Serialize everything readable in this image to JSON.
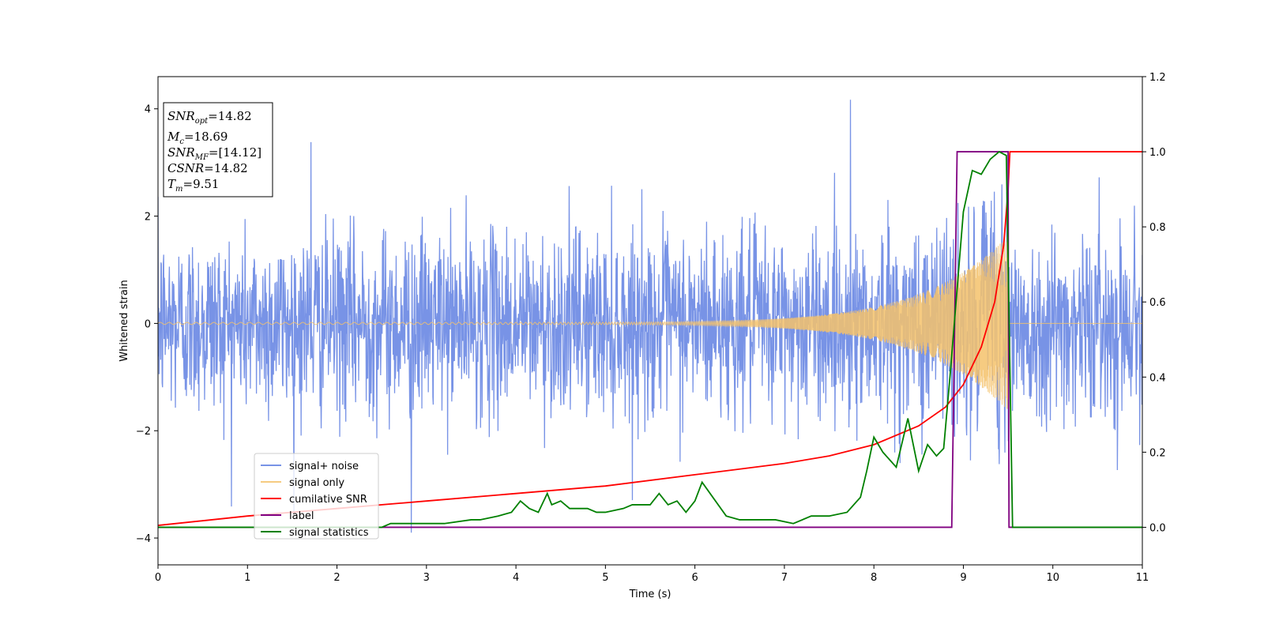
{
  "chart_data": {
    "type": "line",
    "xlabel": "Time (s)",
    "ylabel": "Whitened strain",
    "xlim": [
      0,
      11
    ],
    "ylim": [
      -4.5,
      4.6
    ],
    "y2lim": [
      -0.1,
      1.2
    ],
    "xticks": [
      "0",
      "1",
      "2",
      "3",
      "4",
      "5",
      "6",
      "7",
      "8",
      "9",
      "10",
      "11"
    ],
    "yticks": [
      "-4",
      "-2",
      "0",
      "2",
      "4"
    ],
    "y2ticks": [
      "0.0",
      "0.2",
      "0.4",
      "0.6",
      "0.8",
      "1.0",
      "1.2"
    ],
    "legend_position": "lower-left",
    "grid": false,
    "annotation": {
      "lines": [
        {
          "main": "SNR",
          "sub": "opt",
          "value": "=14.82"
        },
        {
          "main": "M",
          "sub": "c",
          "value": "=18.69"
        },
        {
          "main": "SNR",
          "sub": "MF",
          "value": "=[14.12]"
        },
        {
          "main": "CSNR",
          "sub": "",
          "value": "=14.82"
        },
        {
          "main": "T",
          "sub": "m",
          "value": "=9.51"
        }
      ]
    },
    "series": [
      {
        "name": "signal+ noise",
        "axis": "left",
        "color": "#7893e6",
        "kind": "noise",
        "noise_std": 0.85,
        "peak_values": [
          [
            7.74,
            4.17
          ],
          [
            2.83,
            -3.9
          ],
          [
            1.71,
            3.38
          ]
        ]
      },
      {
        "name": "signal only",
        "axis": "left",
        "color": "#f5c26b",
        "kind": "chirp",
        "amplitude_start": 0.02,
        "amplitude_end": 1.65,
        "end_time": 9.51,
        "start_frequency": 10,
        "end_frequency": 60
      },
      {
        "name": "cumilative SNR",
        "axis": "right",
        "color": "#ff0000",
        "kind": "line",
        "x": [
          0,
          1,
          2,
          3,
          4,
          5,
          6,
          7,
          7.5,
          8,
          8.5,
          8.8,
          9,
          9.2,
          9.35,
          9.45,
          9.5,
          9.52,
          11
        ],
        "y": [
          0.005,
          0.03,
          0.05,
          0.07,
          0.09,
          0.11,
          0.14,
          0.17,
          0.19,
          0.22,
          0.27,
          0.32,
          0.38,
          0.48,
          0.6,
          0.75,
          0.9,
          1.0,
          1.0
        ]
      },
      {
        "name": "label",
        "axis": "right",
        "color": "#800080",
        "kind": "line",
        "x": [
          0,
          8.87,
          8.93,
          9.5,
          9.51,
          11
        ],
        "y": [
          0.0,
          0.0,
          1.0,
          1.0,
          0.0,
          0.0
        ]
      },
      {
        "name": "signal statistics",
        "axis": "right",
        "color": "#008000",
        "kind": "line",
        "x": [
          0,
          2.5,
          2.6,
          2.9,
          3.2,
          3.5,
          3.6,
          3.8,
          3.95,
          4.05,
          4.15,
          4.25,
          4.35,
          4.4,
          4.5,
          4.6,
          4.8,
          4.9,
          5.0,
          5.2,
          5.3,
          5.5,
          5.6,
          5.7,
          5.8,
          5.9,
          6.0,
          6.08,
          6.2,
          6.35,
          6.5,
          6.7,
          6.9,
          7.1,
          7.3,
          7.5,
          7.7,
          7.85,
          7.92,
          8.0,
          8.1,
          8.25,
          8.38,
          8.5,
          8.6,
          8.7,
          8.78,
          8.85,
          9.0,
          9.1,
          9.2,
          9.3,
          9.4,
          9.48,
          9.55,
          11
        ],
        "y": [
          0.0,
          0.0,
          0.01,
          0.01,
          0.01,
          0.02,
          0.02,
          0.03,
          0.04,
          0.07,
          0.05,
          0.04,
          0.09,
          0.06,
          0.07,
          0.05,
          0.05,
          0.04,
          0.04,
          0.05,
          0.06,
          0.06,
          0.09,
          0.06,
          0.07,
          0.04,
          0.07,
          0.12,
          0.08,
          0.03,
          0.02,
          0.02,
          0.02,
          0.01,
          0.03,
          0.03,
          0.04,
          0.08,
          0.15,
          0.24,
          0.2,
          0.16,
          0.29,
          0.15,
          0.22,
          0.19,
          0.21,
          0.4,
          0.84,
          0.95,
          0.94,
          0.98,
          1.0,
          0.99,
          0.0,
          0.0
        ]
      }
    ]
  }
}
